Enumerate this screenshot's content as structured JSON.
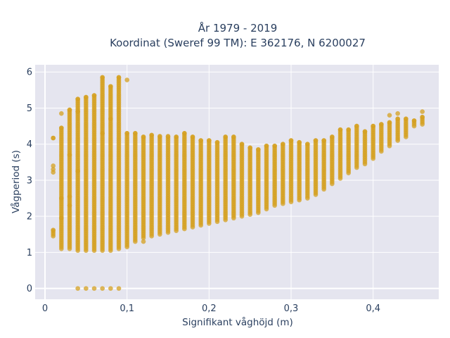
{
  "chart_data": {
    "type": "scatter",
    "title_line1": "År 1979 - 2019",
    "title_line2": "Koordinat (Sweref 99 TM): E 362176, N 6200027",
    "xlabel": "Signifikant våghöjd (m)",
    "ylabel": "Vågperiod (s)",
    "xlim": [
      -0.012,
      0.48
    ],
    "ylim": [
      -0.3,
      6.2
    ],
    "xticks": [
      0,
      0.1,
      0.2,
      0.3,
      0.4
    ],
    "xtick_labels": [
      "0",
      "0,1",
      "0,2",
      "0,3",
      "0,4"
    ],
    "yticks": [
      0,
      1,
      2,
      3,
      4,
      5,
      6
    ],
    "ytick_labels": [
      "0",
      "1",
      "2",
      "3",
      "4",
      "5",
      "6"
    ],
    "grid": true,
    "marker_color": "#d4a020",
    "background_color": "#e5e5ef",
    "points_summary": "Each column is a wave-height bin (0.01 m step); values give wave-period range [min, max] covered densely by points, plus isolated points.",
    "columns": [
      {
        "x": 0.01,
        "range": [
          1.45,
          1.62
        ],
        "extra": [
          3.22,
          3.3,
          3.4,
          4.17
        ]
      },
      {
        "x": 0.02,
        "range": [
          1.1,
          4.45
        ],
        "extra": [
          4.85
        ]
      },
      {
        "x": 0.03,
        "range": [
          1.1,
          4.95
        ],
        "extra": []
      },
      {
        "x": 0.04,
        "range": [
          1.05,
          5.25
        ],
        "extra": [
          0
        ]
      },
      {
        "x": 0.05,
        "range": [
          1.05,
          5.3
        ],
        "extra": [
          0
        ]
      },
      {
        "x": 0.06,
        "range": [
          1.05,
          5.35
        ],
        "extra": [
          0
        ]
      },
      {
        "x": 0.07,
        "range": [
          1.05,
          5.85
        ],
        "extra": [
          0
        ]
      },
      {
        "x": 0.08,
        "range": [
          1.05,
          5.6
        ],
        "extra": [
          0
        ]
      },
      {
        "x": 0.09,
        "range": [
          1.1,
          5.85
        ],
        "extra": [
          0
        ]
      },
      {
        "x": 0.1,
        "range": [
          1.15,
          4.3
        ],
        "extra": [
          5.78
        ]
      },
      {
        "x": 0.11,
        "range": [
          1.3,
          4.3
        ],
        "extra": []
      },
      {
        "x": 0.12,
        "range": [
          1.4,
          4.2
        ],
        "extra": []
      },
      {
        "x": 0.13,
        "range": [
          1.45,
          4.25
        ],
        "extra": []
      },
      {
        "x": 0.14,
        "range": [
          1.5,
          4.22
        ],
        "extra": []
      },
      {
        "x": 0.15,
        "range": [
          1.55,
          4.22
        ],
        "extra": []
      },
      {
        "x": 0.16,
        "range": [
          1.6,
          4.2
        ],
        "extra": []
      },
      {
        "x": 0.17,
        "range": [
          1.65,
          4.3
        ],
        "extra": []
      },
      {
        "x": 0.18,
        "range": [
          1.7,
          4.2
        ],
        "extra": []
      },
      {
        "x": 0.19,
        "range": [
          1.75,
          4.1
        ],
        "extra": []
      },
      {
        "x": 0.2,
        "range": [
          1.8,
          4.1
        ],
        "extra": []
      },
      {
        "x": 0.21,
        "range": [
          1.85,
          4.05
        ],
        "extra": []
      },
      {
        "x": 0.22,
        "range": [
          1.9,
          4.2
        ],
        "extra": []
      },
      {
        "x": 0.23,
        "range": [
          1.95,
          4.2
        ],
        "extra": []
      },
      {
        "x": 0.24,
        "range": [
          2.0,
          4.0
        ],
        "extra": []
      },
      {
        "x": 0.25,
        "range": [
          2.05,
          3.9
        ],
        "extra": []
      },
      {
        "x": 0.26,
        "range": [
          2.1,
          3.85
        ],
        "extra": []
      },
      {
        "x": 0.27,
        "range": [
          2.2,
          3.95
        ],
        "extra": []
      },
      {
        "x": 0.28,
        "range": [
          2.3,
          3.95
        ],
        "extra": []
      },
      {
        "x": 0.29,
        "range": [
          2.35,
          4.0
        ],
        "extra": []
      },
      {
        "x": 0.3,
        "range": [
          2.4,
          4.1
        ],
        "extra": []
      },
      {
        "x": 0.31,
        "range": [
          2.45,
          4.05
        ],
        "extra": []
      },
      {
        "x": 0.32,
        "range": [
          2.5,
          4.0
        ],
        "extra": []
      },
      {
        "x": 0.33,
        "range": [
          2.6,
          4.1
        ],
        "extra": []
      },
      {
        "x": 0.34,
        "range": [
          2.75,
          4.1
        ],
        "extra": []
      },
      {
        "x": 0.35,
        "range": [
          2.9,
          4.2
        ],
        "extra": []
      },
      {
        "x": 0.36,
        "range": [
          3.05,
          4.4
        ],
        "extra": []
      },
      {
        "x": 0.37,
        "range": [
          3.2,
          4.4
        ],
        "extra": []
      },
      {
        "x": 0.38,
        "range": [
          3.35,
          4.5
        ],
        "extra": []
      },
      {
        "x": 0.39,
        "range": [
          3.45,
          4.35
        ],
        "extra": []
      },
      {
        "x": 0.4,
        "range": [
          3.6,
          4.5
        ],
        "extra": []
      },
      {
        "x": 0.41,
        "range": [
          3.8,
          4.55
        ],
        "extra": []
      },
      {
        "x": 0.42,
        "range": [
          3.95,
          4.6
        ],
        "extra": [
          4.8
        ]
      },
      {
        "x": 0.43,
        "range": [
          4.1,
          4.7
        ],
        "extra": [
          4.85
        ]
      },
      {
        "x": 0.44,
        "range": [
          4.2,
          4.7
        ],
        "extra": []
      },
      {
        "x": 0.45,
        "range": [
          4.5,
          4.65
        ],
        "extra": []
      },
      {
        "x": 0.46,
        "range": [
          4.55,
          4.75
        ],
        "extra": [
          4.9
        ]
      }
    ],
    "isolated_points": [
      {
        "x": 0.01,
        "y": 4.17
      },
      {
        "x": 0.02,
        "y": 2.5
      },
      {
        "x": 0.02,
        "y": 1.95
      },
      {
        "x": 0.03,
        "y": 2.3
      },
      {
        "x": 0.03,
        "y": 2.55
      },
      {
        "x": 0.03,
        "y": 3.7
      },
      {
        "x": 0.04,
        "y": 3.25
      },
      {
        "x": 0.04,
        "y": 4.9
      },
      {
        "x": 0.07,
        "y": 4.3
      },
      {
        "x": 0.08,
        "y": 4.7
      },
      {
        "x": 0.12,
        "y": 1.3
      }
    ]
  }
}
